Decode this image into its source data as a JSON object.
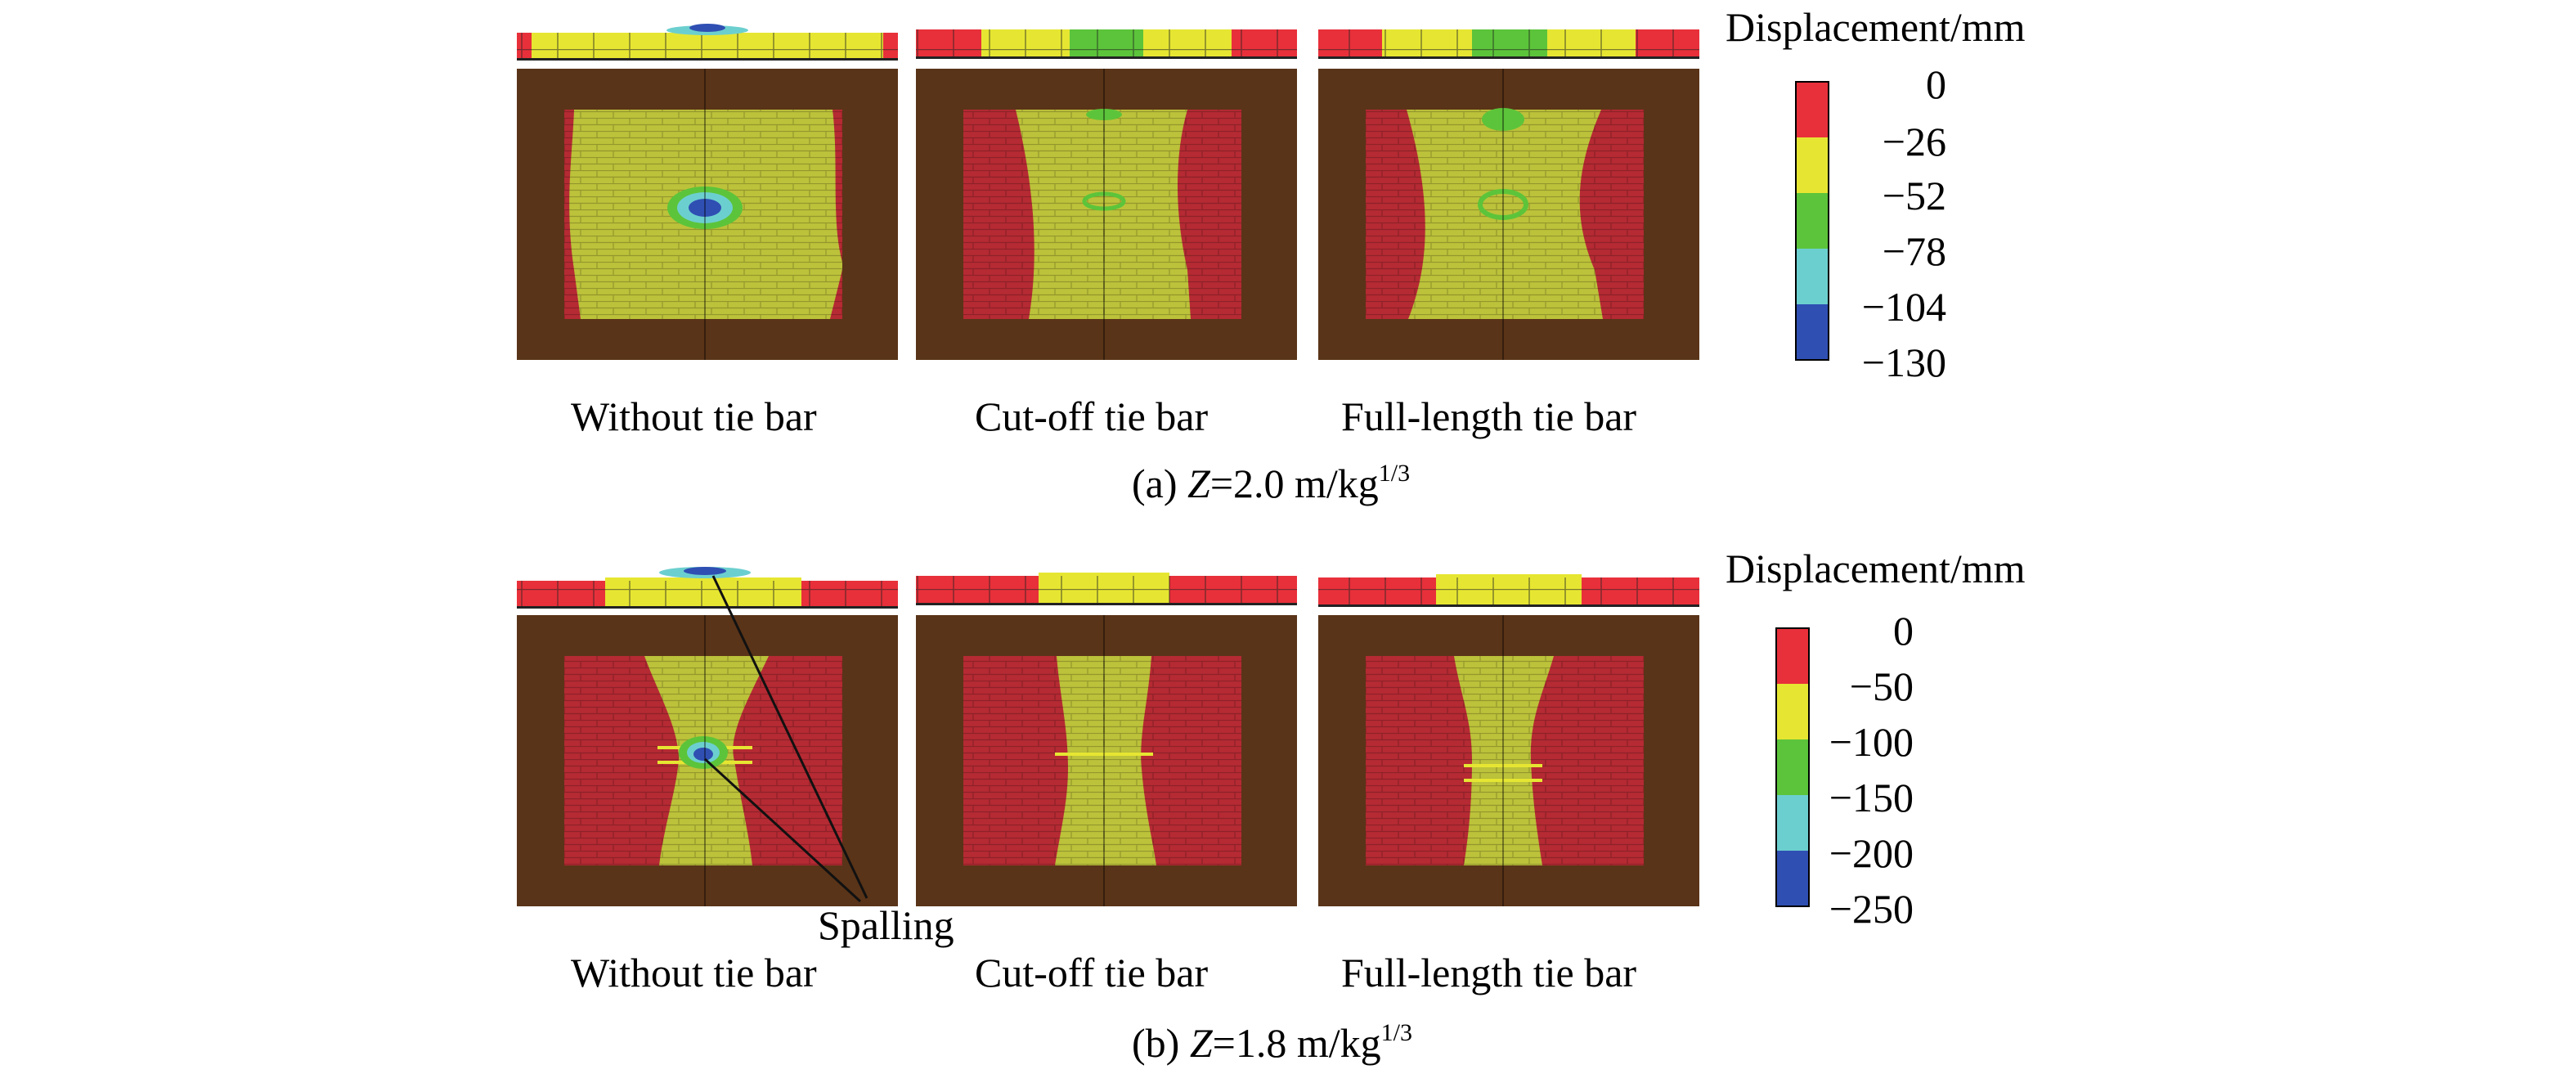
{
  "figure": {
    "panels_a": {
      "labels": [
        "Without tie bar",
        "Cut-off tie bar",
        "Full-length tie bar"
      ],
      "caption": {
        "prefix": "(a) ",
        "var": "Z",
        "value": "=2.0 m/kg",
        "exp": "1/3"
      }
    },
    "panels_b": {
      "labels": [
        "Without tie bar",
        "Cut-off tie bar",
        "Full-length tie bar"
      ],
      "caption": {
        "prefix": "(b) ",
        "var": "Z",
        "value": "=1.8 m/kg",
        "exp": "1/3"
      },
      "annotation": "Spalling"
    },
    "legend_a": {
      "title": "Displacement/mm",
      "ticks": [
        "0",
        "−26",
        "−52",
        "−78",
        "−104",
        "−130"
      ]
    },
    "legend_b": {
      "title": "Displacement/mm",
      "ticks": [
        "0",
        "−50",
        "−100",
        "−150",
        "−200",
        "−250"
      ]
    },
    "colors": {
      "red": "#e8303a",
      "yellow": "#e6e632",
      "green": "#5cc43a",
      "cyan": "#6ccfcf",
      "blue": "#2f4fb3",
      "frame": "#5a3418",
      "wall_red": "#b52a33",
      "wall_yellow": "#bcc23a"
    }
  }
}
